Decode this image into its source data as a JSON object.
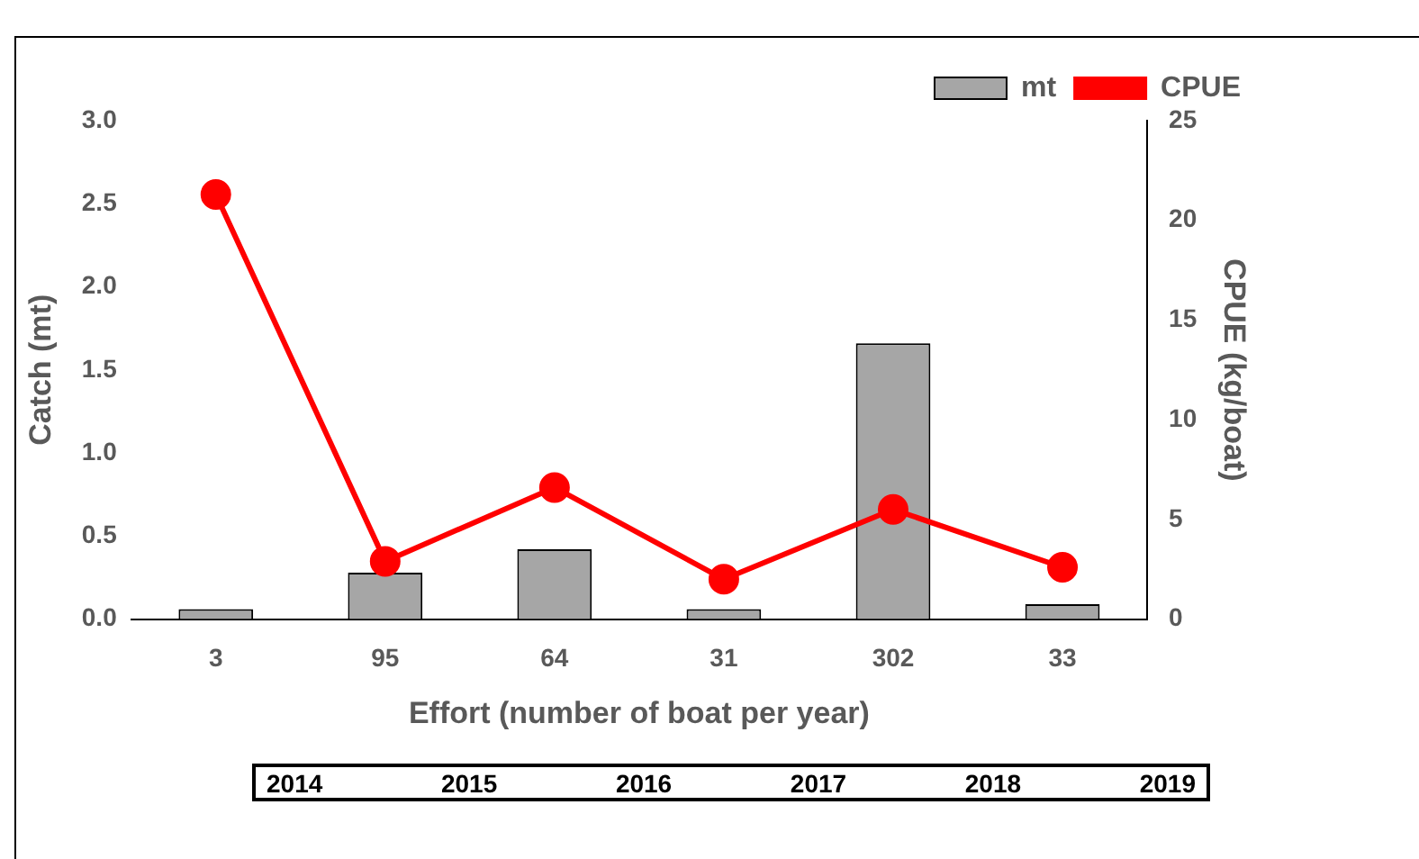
{
  "chart_data": {
    "type": "bar",
    "xlabel": "Effort (number of boat per year)",
    "ylabel": "Catch (mt)",
    "y2label": "CPUE (kg/boat)",
    "categories": [
      "3",
      "95",
      "64",
      "31",
      "302",
      "33"
    ],
    "series": [
      {
        "name": "mt",
        "color": "#a6a6a6",
        "values": [
          0.06,
          0.28,
          0.42,
          0.06,
          1.66,
          0.09
        ]
      },
      {
        "name": "CPUE",
        "type": "line",
        "axis": "y2",
        "color": "#ff0000",
        "marker": "circle",
        "values": [
          21.3,
          2.9,
          6.6,
          2.0,
          5.5,
          2.6
        ]
      }
    ],
    "ylim": [
      0,
      3
    ],
    "yticks": [
      {
        "value": 0,
        "label": "0.0"
      },
      0.5,
      {
        "value": 1,
        "label": "1.0"
      },
      1.5,
      {
        "value": 2,
        "label": "2.0"
      },
      2.5,
      {
        "value": 3,
        "label": "3.0"
      }
    ],
    "y2lim": [
      0,
      25
    ],
    "y2ticks": [
      0,
      5,
      10,
      15,
      20,
      25
    ],
    "grid": false,
    "legend": "top right",
    "annotations": [
      "2014",
      "2015",
      "2016",
      "2017",
      "2018",
      "2019"
    ]
  }
}
